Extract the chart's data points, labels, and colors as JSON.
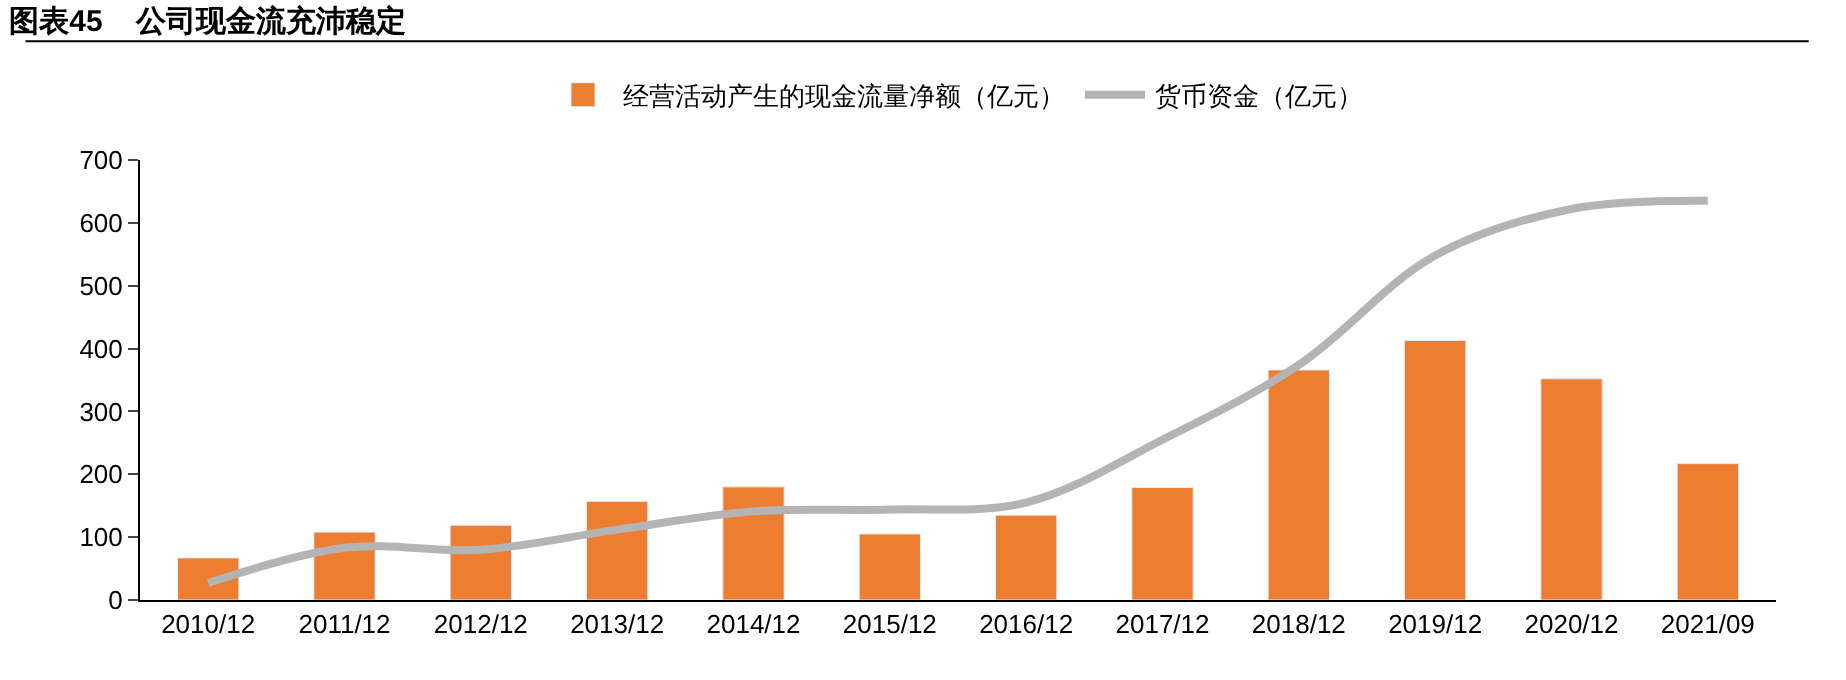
{
  "chart_data": {
    "type": "bar",
    "title": "图表45    公司现金流充沛稳定",
    "categories": [
      "2010/12",
      "2011/12",
      "2012/12",
      "2013/12",
      "2014/12",
      "2015/12",
      "2016/12",
      "2017/12",
      "2018/12",
      "2019/12",
      "2020/12",
      "2021/09"
    ],
    "series": [
      {
        "name": "经营活动产生的现金流量净额（亿元）",
        "color": "#ed7d31",
        "values": [
          67,
          108,
          119,
          157,
          180,
          105,
          135,
          179,
          366,
          413,
          352,
          217
        ]
      },
      {
        "name": "货币资金（亿元）",
        "color": "#b4b4b4",
        "type": "line",
        "values": [
          27,
          83,
          80,
          112,
          141,
          144,
          155,
          255,
          374,
          548,
          622,
          635
        ]
      }
    ],
    "ylim": [
      0,
      700
    ],
    "yticks": [
      0,
      100,
      200,
      300,
      400,
      500,
      600,
      700
    ],
    "legend": "top"
  }
}
